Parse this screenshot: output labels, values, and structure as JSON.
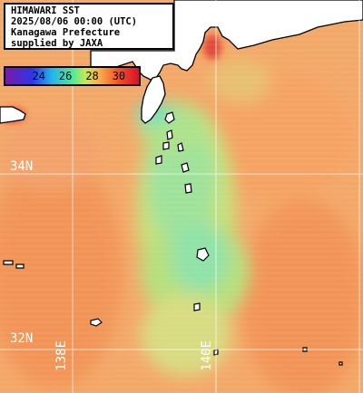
{
  "header": {
    "lines": [
      "HIMAWARI SST",
      "2025/08/06 00:00 (UTC)",
      "Kanagawa Prefecture",
      "supplied by JAXA"
    ]
  },
  "colorbar": {
    "ticks": [
      {
        "value": 24,
        "label": "24"
      },
      {
        "value": 26,
        "label": "26"
      },
      {
        "value": 28,
        "label": "28"
      },
      {
        "value": 30,
        "label": "30"
      }
    ],
    "range": [
      21.5,
      31.5
    ],
    "stops": [
      {
        "value": 21.5,
        "color": "#7a1aa8"
      },
      {
        "value": 23.5,
        "color": "#2f35e8"
      },
      {
        "value": 25,
        "color": "#23b6e8"
      },
      {
        "value": 26.5,
        "color": "#4ee8a0"
      },
      {
        "value": 27.5,
        "color": "#c8e850"
      },
      {
        "value": 28.5,
        "color": "#f8b050"
      },
      {
        "value": 30,
        "color": "#f55020"
      },
      {
        "value": 31.5,
        "color": "#d81030"
      }
    ]
  },
  "grid": {
    "lat_labels": [
      "34N",
      "32N"
    ],
    "lon_labels": [
      "138E",
      "140E"
    ]
  },
  "colors": {
    "land": "#ffffff",
    "coast": "#000000",
    "grid": "#ffffff",
    "sea_base": "#f4a868",
    "sea_warm": "#f39456",
    "sea_cool": "#b2e07a",
    "sea_cooler": "#8fe2a0",
    "hot_bay": "#e04a3a"
  }
}
